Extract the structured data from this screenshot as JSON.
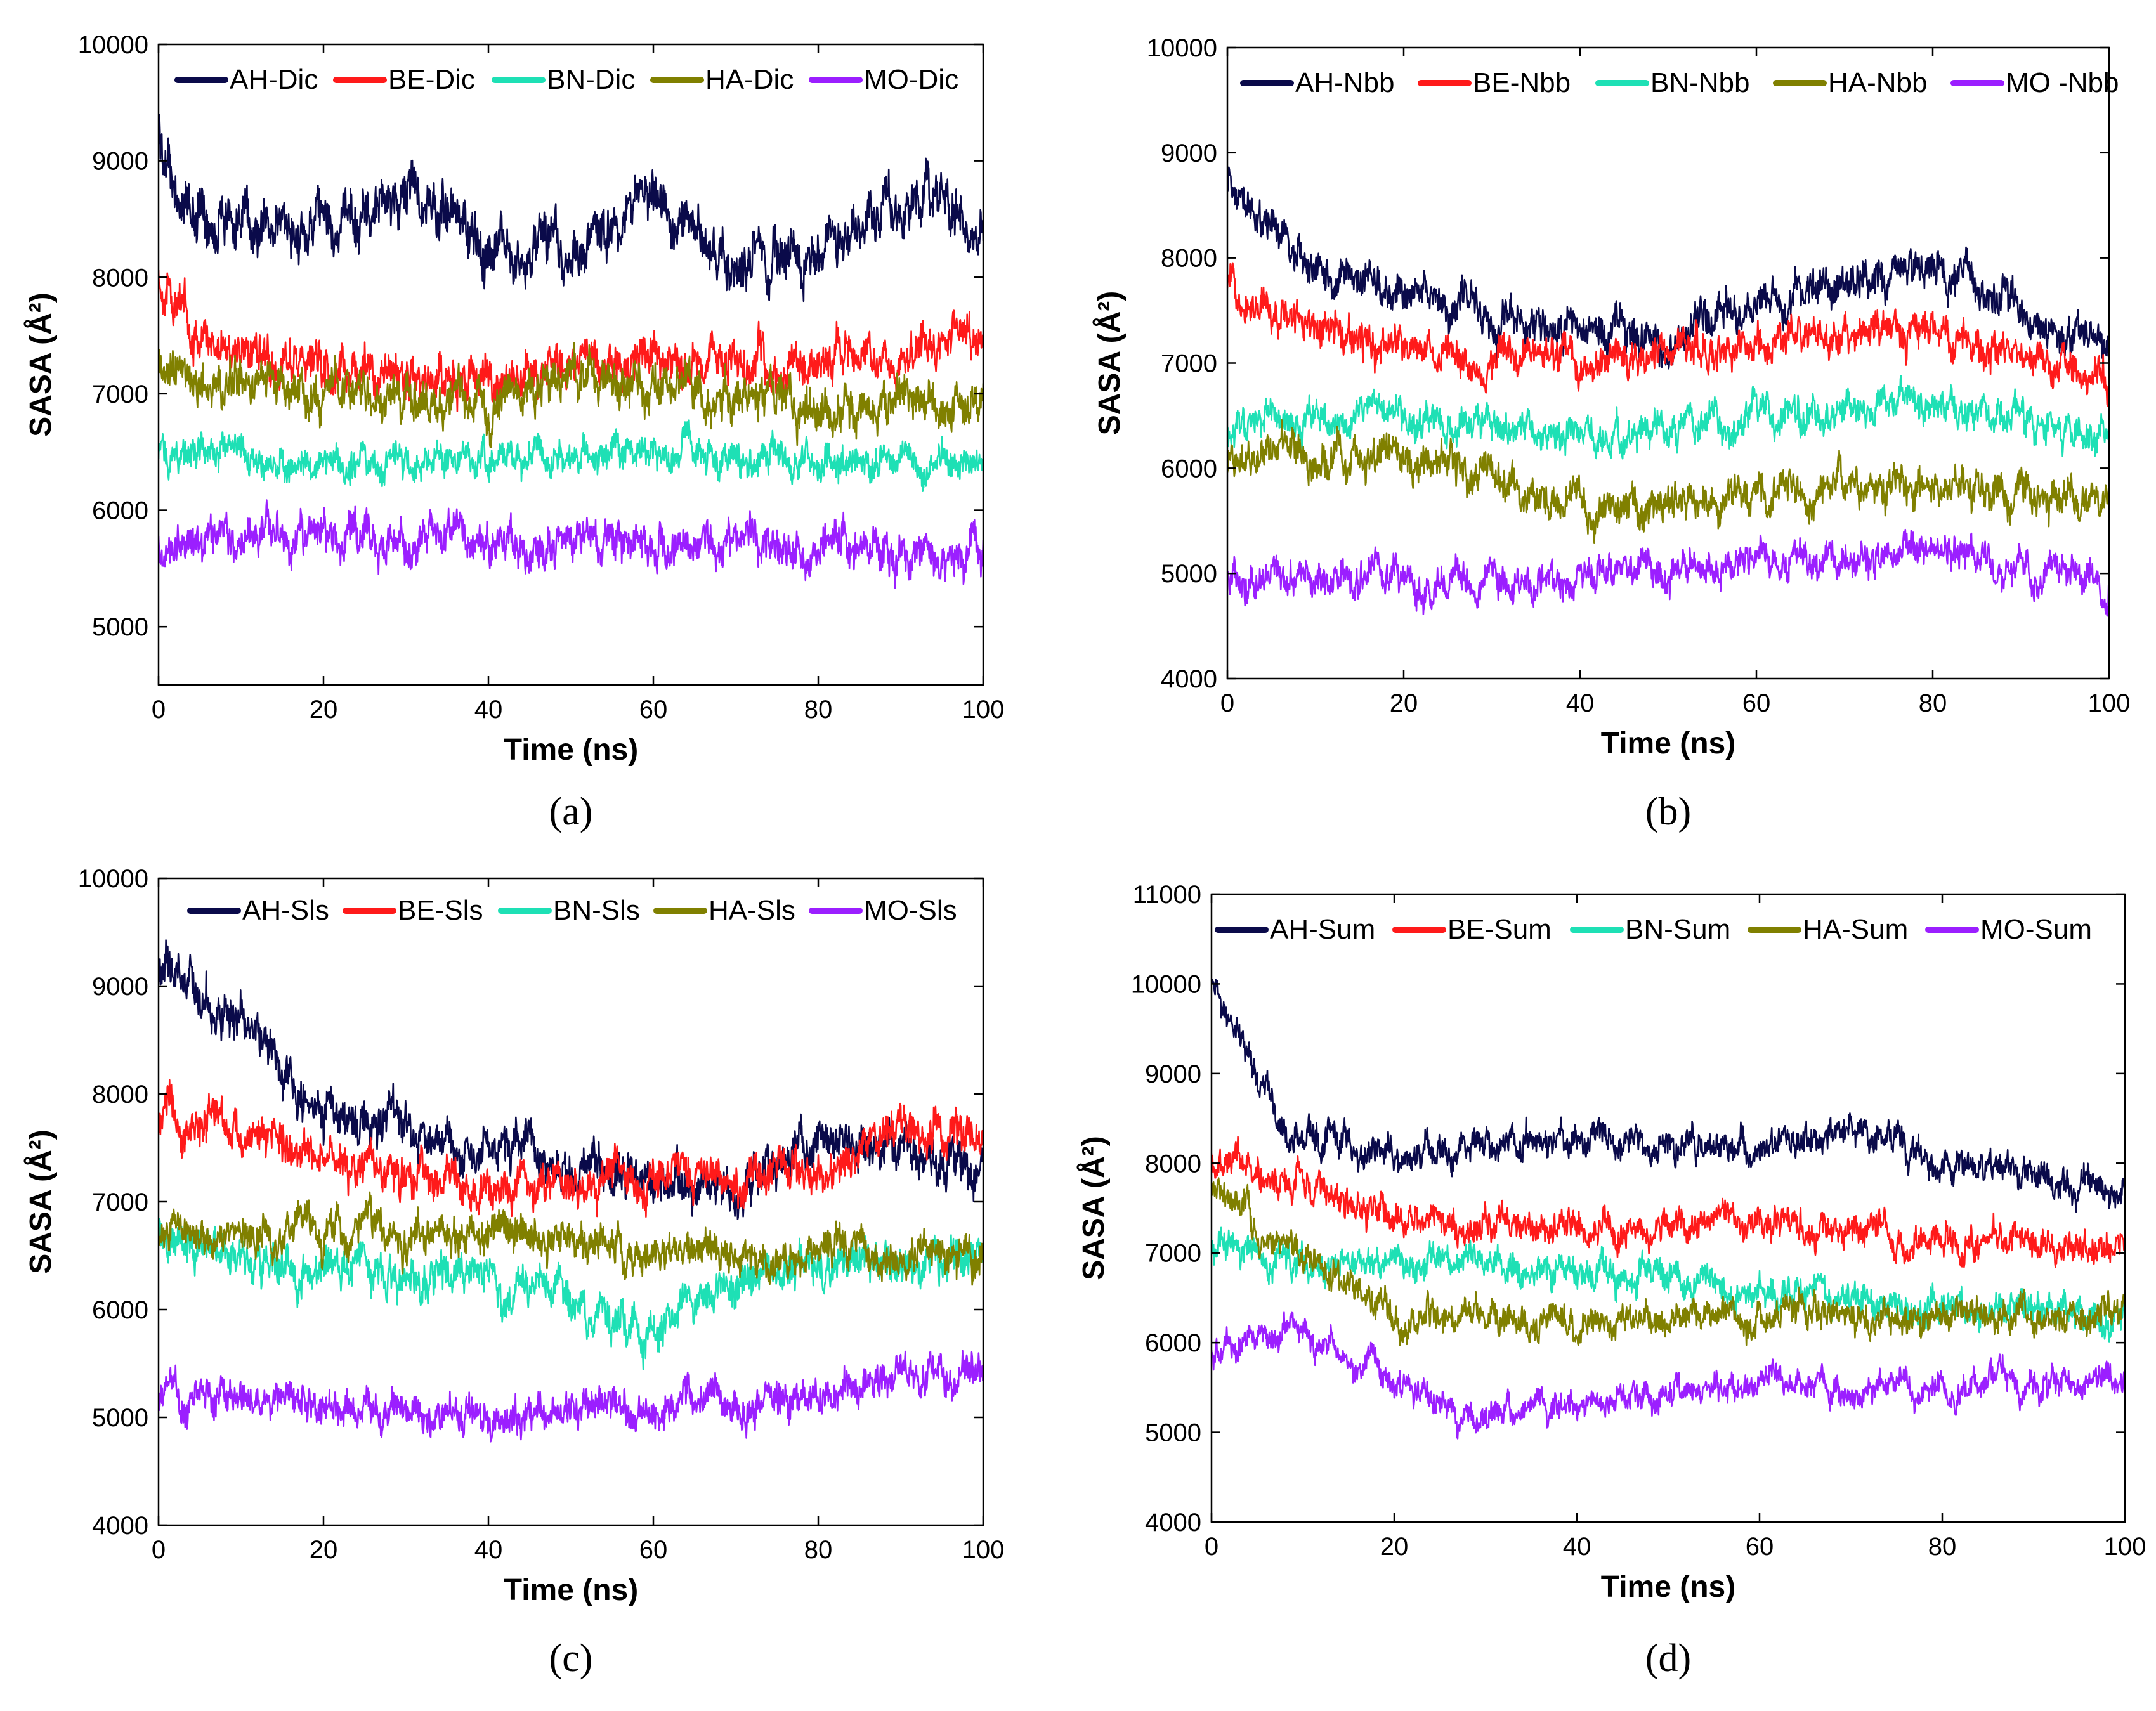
{
  "chart_data": [
    {
      "type": "line",
      "panel_label": "(a)",
      "xlabel": "Time (ns)",
      "ylabel": "SASA (Å²)",
      "xlim": [
        0,
        100
      ],
      "ylim": [
        4500,
        10000
      ],
      "xticks": [
        0,
        20,
        40,
        60,
        80,
        100
      ],
      "yticks": [
        5000,
        6000,
        7000,
        8000,
        9000,
        10000
      ],
      "legend": "top",
      "series": [
        {
          "name": "AH-Dic",
          "color": "#0a0a4a",
          "key": [
            [
              0,
              9200
            ],
            [
              3,
              8600
            ],
            [
              10,
              8500
            ],
            [
              20,
              8400
            ],
            [
              30,
              8700
            ],
            [
              40,
              8300
            ],
            [
              50,
              8200
            ],
            [
              60,
              8600
            ],
            [
              70,
              8100
            ],
            [
              80,
              8300
            ],
            [
              90,
              8700
            ],
            [
              95,
              8800
            ],
            [
              100,
              8200
            ]
          ],
          "noise": 280
        },
        {
          "name": "BE-Dic",
          "color": "#ff1a1a",
          "key": [
            [
              0,
              8000
            ],
            [
              5,
              7500
            ],
            [
              20,
              7200
            ],
            [
              40,
              7100
            ],
            [
              60,
              7300
            ],
            [
              80,
              7300
            ],
            [
              100,
              7500
            ]
          ],
          "noise": 230
        },
        {
          "name": "BN-Dic",
          "color": "#1ee0b5",
          "key": [
            [
              0,
              6500
            ],
            [
              20,
              6400
            ],
            [
              40,
              6450
            ],
            [
              60,
              6500
            ],
            [
              80,
              6400
            ],
            [
              100,
              6400
            ]
          ],
          "noise": 180
        },
        {
          "name": "HA-Dic",
          "color": "#808000",
          "key": [
            [
              0,
              7200
            ],
            [
              20,
              7000
            ],
            [
              40,
              6900
            ],
            [
              50,
              7200
            ],
            [
              60,
              7000
            ],
            [
              80,
              6900
            ],
            [
              100,
              6900
            ]
          ],
          "noise": 230
        },
        {
          "name": "MO-Dic",
          "color": "#9b1fff",
          "key": [
            [
              0,
              5700
            ],
            [
              20,
              5800
            ],
            [
              40,
              5700
            ],
            [
              60,
              5800
            ],
            [
              80,
              5700
            ],
            [
              100,
              5600
            ]
          ],
          "noise": 210
        }
      ]
    },
    {
      "type": "line",
      "panel_label": "(b)",
      "xlabel": "Time (ns)",
      "ylabel": "SASA (Å²)",
      "xlim": [
        0,
        100
      ],
      "ylim": [
        4000,
        10000
      ],
      "xticks": [
        0,
        20,
        40,
        60,
        80,
        100
      ],
      "yticks": [
        4000,
        5000,
        6000,
        7000,
        8000,
        9000,
        10000
      ],
      "legend": "top",
      "series": [
        {
          "name": "AH-Nbb",
          "color": "#0a0a4a",
          "key": [
            [
              0,
              8800
            ],
            [
              5,
              8300
            ],
            [
              10,
              7800
            ],
            [
              20,
              7700
            ],
            [
              30,
              7400
            ],
            [
              40,
              7300
            ],
            [
              50,
              7200
            ],
            [
              60,
              7500
            ],
            [
              70,
              7800
            ],
            [
              80,
              7900
            ],
            [
              90,
              7500
            ],
            [
              100,
              7100
            ]
          ],
          "noise": 230
        },
        {
          "name": "BE-Nbb",
          "color": "#ff1a1a",
          "key": [
            [
              0,
              7800
            ],
            [
              10,
              7300
            ],
            [
              20,
              7100
            ],
            [
              40,
              7000
            ],
            [
              60,
              7200
            ],
            [
              80,
              7300
            ],
            [
              100,
              6800
            ]
          ],
          "noise": 220
        },
        {
          "name": "BN-Nbb",
          "color": "#1ee0b5",
          "key": [
            [
              0,
              6400
            ],
            [
              20,
              6500
            ],
            [
              40,
              6300
            ],
            [
              60,
              6500
            ],
            [
              80,
              6600
            ],
            [
              100,
              6300
            ]
          ],
          "noise": 200
        },
        {
          "name": "HA-Nbb",
          "color": "#808000",
          "key": [
            [
              0,
              6100
            ],
            [
              20,
              6100
            ],
            [
              35,
              5800
            ],
            [
              40,
              5500
            ],
            [
              60,
              5800
            ],
            [
              80,
              5800
            ],
            [
              100,
              5700
            ]
          ],
          "noise": 220
        },
        {
          "name": "MO -Nbb",
          "color": "#9b1fff",
          "key": [
            [
              0,
              5000
            ],
            [
              20,
              4900
            ],
            [
              40,
              5000
            ],
            [
              60,
              5100
            ],
            [
              80,
              5200
            ],
            [
              100,
              4900
            ]
          ],
          "noise": 200
        }
      ]
    },
    {
      "type": "line",
      "panel_label": "(c)",
      "xlabel": "Time (ns)",
      "ylabel": "SASA (Å²)",
      "xlim": [
        0,
        100
      ],
      "ylim": [
        4000,
        10000
      ],
      "xticks": [
        0,
        20,
        40,
        60,
        80,
        100
      ],
      "yticks": [
        4000,
        5000,
        6000,
        7000,
        8000,
        9000,
        10000
      ],
      "legend": "top",
      "series": [
        {
          "name": "AH-Sls",
          "color": "#0a0a4a",
          "key": [
            [
              0,
              9200
            ],
            [
              5,
              8900
            ],
            [
              10,
              8700
            ],
            [
              20,
              7800
            ],
            [
              30,
              7700
            ],
            [
              40,
              7500
            ],
            [
              50,
              7300
            ],
            [
              60,
              7200
            ],
            [
              70,
              7000
            ],
            [
              80,
              7700
            ],
            [
              90,
              7500
            ],
            [
              100,
              7300
            ]
          ],
          "noise": 250
        },
        {
          "name": "BE-Sls",
          "color": "#ff1a1a",
          "key": [
            [
              0,
              7800
            ],
            [
              20,
              7400
            ],
            [
              40,
              7100
            ],
            [
              60,
              7200
            ],
            [
              80,
              7300
            ],
            [
              90,
              7700
            ],
            [
              100,
              7500
            ]
          ],
          "noise": 240
        },
        {
          "name": "BN-Sls",
          "color": "#1ee0b5",
          "key": [
            [
              0,
              6700
            ],
            [
              20,
              6400
            ],
            [
              40,
              6300
            ],
            [
              55,
              5900
            ],
            [
              60,
              5800
            ],
            [
              70,
              6300
            ],
            [
              80,
              6400
            ],
            [
              100,
              6500
            ]
          ],
          "noise": 230
        },
        {
          "name": "HA-Sls",
          "color": "#808000",
          "key": [
            [
              0,
              6700
            ],
            [
              20,
              6700
            ],
            [
              40,
              6700
            ],
            [
              60,
              6500
            ],
            [
              80,
              6500
            ],
            [
              100,
              6500
            ]
          ],
          "noise": 220
        },
        {
          "name": "MO-Sls",
          "color": "#9b1fff",
          "key": [
            [
              0,
              5200
            ],
            [
              20,
              5100
            ],
            [
              40,
              5000
            ],
            [
              60,
              5100
            ],
            [
              80,
              5200
            ],
            [
              100,
              5500
            ]
          ],
          "noise": 210
        }
      ]
    },
    {
      "type": "line",
      "panel_label": "(d)",
      "xlabel": "Time (ns)",
      "ylabel": "SASA (Å²)",
      "xlim": [
        0,
        100
      ],
      "ylim": [
        4000,
        11000
      ],
      "xticks": [
        0,
        20,
        40,
        60,
        80,
        100
      ],
      "yticks": [
        4000,
        5000,
        6000,
        7000,
        8000,
        9000,
        10000,
        11000
      ],
      "legend": "top",
      "series": [
        {
          "name": "AH-Sum",
          "color": "#0a0a4a",
          "key": [
            [
              0,
              10000
            ],
            [
              3,
              9300
            ],
            [
              8,
              8400
            ],
            [
              20,
              8100
            ],
            [
              40,
              8300
            ],
            [
              60,
              8100
            ],
            [
              70,
              8400
            ],
            [
              80,
              8000
            ],
            [
              90,
              7900
            ],
            [
              100,
              7600
            ]
          ],
          "noise": 220
        },
        {
          "name": "BE-Sum",
          "color": "#ff1a1a",
          "key": [
            [
              0,
              8000
            ],
            [
              10,
              7800
            ],
            [
              20,
              7400
            ],
            [
              40,
              7200
            ],
            [
              60,
              7300
            ],
            [
              80,
              7200
            ],
            [
              100,
              7000
            ]
          ],
          "noise": 220
        },
        {
          "name": "BN-Sum",
          "color": "#1ee0b5",
          "key": [
            [
              0,
              7000
            ],
            [
              20,
              6900
            ],
            [
              40,
              6800
            ],
            [
              60,
              6600
            ],
            [
              80,
              6400
            ],
            [
              100,
              6300
            ]
          ],
          "noise": 220
        },
        {
          "name": "HA-Sum",
          "color": "#808000",
          "key": [
            [
              0,
              7600
            ],
            [
              10,
              7000
            ],
            [
              20,
              6300
            ],
            [
              40,
              6200
            ],
            [
              60,
              6300
            ],
            [
              80,
              6300
            ],
            [
              100,
              6300
            ]
          ],
          "noise": 220
        },
        {
          "name": "MO-Sum",
          "color": "#9b1fff",
          "key": [
            [
              0,
              5800
            ],
            [
              10,
              6200
            ],
            [
              20,
              5600
            ],
            [
              30,
              5100
            ],
            [
              40,
              5400
            ],
            [
              60,
              5500
            ],
            [
              80,
              5500
            ],
            [
              100,
              5600
            ]
          ],
          "noise": 200
        }
      ]
    }
  ]
}
